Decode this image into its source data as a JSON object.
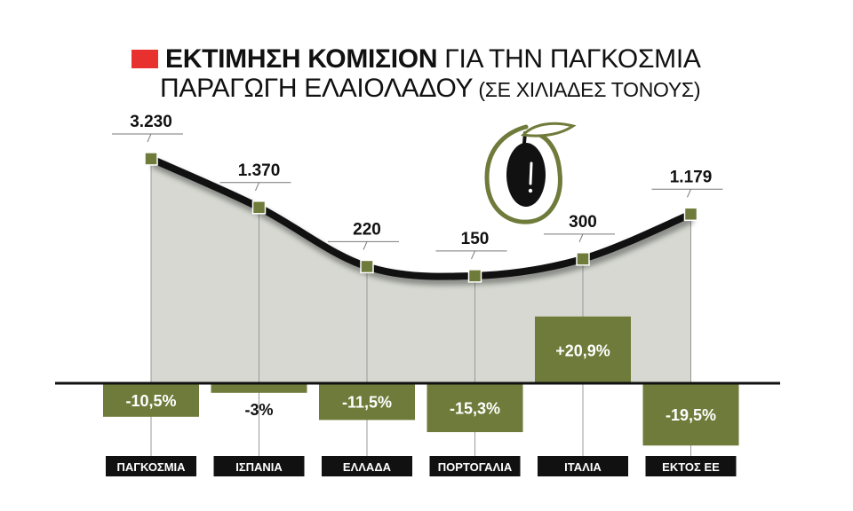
{
  "title": {
    "bold": "ΕΚΤΙΜΗΣΗ ΚΟΜΙΣΙΟΝ",
    "rest1": " ΓΙΑ ΤΗΝ ΠΑΓΚΟΣΜΙΑ",
    "line2": "ΠΑΡΑΓΩΓΗ ΕΛΑΙΟΛΑΔΟΥ",
    "unit": " (ΣΕ ΧΙΛΙΑΔΕΣ ΤΟΝΟΥΣ)"
  },
  "colors": {
    "accent_red": "#e8312f",
    "olive": "#6f7b3a",
    "area": "#d6d8d1",
    "line": "#111111",
    "label_bg": "#111111"
  },
  "icon": "olive-icon",
  "chart_data": {
    "type": "line",
    "categories": [
      "ΠΑΓΚΟΣΜΙΑ",
      "ΙΣΠΑΝΙΑ",
      "ΕΛΛΑΔΑ",
      "ΠΟΡΤΟΓΑΛΙΑ",
      "ΙΤΑΛΙΑ",
      "ΕΚΤΟΣ ΕΕ"
    ],
    "series": [
      {
        "values": [
          3230,
          1370,
          220,
          150,
          300,
          1179
        ],
        "labels": [
          "3.230",
          "1.370",
          "220",
          "150",
          "300",
          "1.179"
        ]
      }
    ],
    "change": {
      "values": [
        -10.5,
        -3,
        -11.5,
        -15.3,
        20.9,
        -19.5
      ],
      "labels": [
        "-10,5%",
        "-3%",
        "-11,5%",
        "-15,3%",
        "+20,9%",
        "-19,5%"
      ]
    }
  }
}
